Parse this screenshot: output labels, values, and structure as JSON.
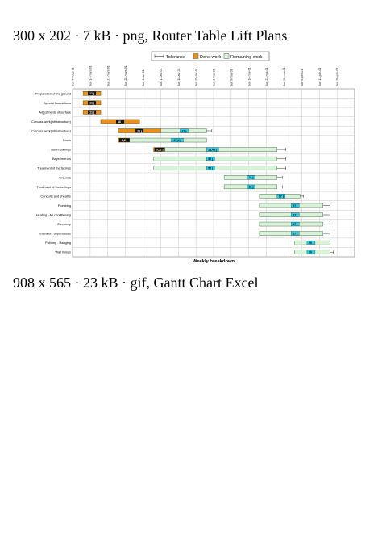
{
  "captions": {
    "top": "300 x 202 · 7 kB · png, Router Table Lift Plans",
    "bottom": "908 x 565 · 23 kB · gif, Gantt Chart Excel"
  },
  "chart_data": {
    "type": "gantt",
    "xlabel": "Weekly breakdown",
    "legend": {
      "placement": "top-right",
      "items": [
        {
          "key": "tolerance",
          "label": "Tolerance"
        },
        {
          "key": "done",
          "label": "Done work",
          "color": "#e8901a"
        },
        {
          "key": "remaining",
          "label": "Remaining work",
          "color": "#d9f2d9"
        }
      ]
    },
    "week_ticks": [
      "Sun 7-mars-01",
      "Sun 14-mars-01",
      "Sun 21-mars-01",
      "Sun 28-mars-01",
      "Sun 4-avr-01",
      "Sun 11-avr-01",
      "Sun 18-avr-01",
      "Sun 25-avr-01",
      "Sun 2-mai-01",
      "Sun 9-mai-01",
      "Sun 16-mai-01",
      "Sun 23-mai-01",
      "Sun 30-mai-01",
      "Sun 6-juin-01",
      "Sun 13-juin-01",
      "Sun 20-juin-01"
    ],
    "grid": true,
    "tasks": [
      {
        "name": "Preparation of the ground",
        "start": 0.6,
        "done_end": 1.6,
        "end": 1.6,
        "label": "11 j",
        "label_style": "done",
        "tol": null
      },
      {
        "name": "Special foundations",
        "start": 0.6,
        "done_end": 1.6,
        "end": 1.6,
        "label": "11 j",
        "label_style": "done",
        "tol": null
      },
      {
        "name": "Adjustments of surface",
        "start": 0.6,
        "done_end": 1.6,
        "end": 1.6,
        "label": "11 j",
        "label_style": "done",
        "tol": null
      },
      {
        "name": "Carcass work(infrastructure)",
        "start": 1.6,
        "done_end": 3.8,
        "end": 3.8,
        "label": "16 j",
        "label_style": "done",
        "tol": null
      },
      {
        "name": "Carcass work(infrastructure)",
        "start": 2.6,
        "done_end": 5.0,
        "end": 7.6,
        "label": "21 j",
        "label_style": "done",
        "label2": "21 j",
        "label2_pos": 6.1,
        "tol": [
          7.6,
          7.9
        ]
      },
      {
        "name": "Roofs",
        "start": 2.6,
        "done_end": 3.2,
        "end": 7.6,
        "label": "4,2 j",
        "label_style": "dark",
        "label2": "37,2 j",
        "label2_pos": 5.6,
        "tol": null
      },
      {
        "name": "Built-headings",
        "start": 4.6,
        "done_end": 5.2,
        "end": 11.6,
        "label": "0,51 j",
        "label_style": "dark",
        "label2": "58,49 j",
        "label2_pos": 7.6,
        "tol": [
          11.6,
          12.1
        ]
      },
      {
        "name": "Bays /mirrors",
        "start": 4.6,
        "done_end": 4.6,
        "end": 11.6,
        "label": "",
        "label_style": "done",
        "label2": "57 j",
        "label2_pos": 7.6,
        "tol": [
          11.6,
          12.1
        ]
      },
      {
        "name": "Treatment of the facings",
        "start": 4.6,
        "done_end": 4.6,
        "end": 11.6,
        "label": "",
        "label_style": "done",
        "label2": "57 j",
        "label2_pos": 7.6,
        "tol": [
          11.6,
          12.1
        ]
      },
      {
        "name": "Grounds",
        "start": 8.6,
        "done_end": 8.6,
        "end": 11.6,
        "label": "",
        "label_style": "done",
        "label2": "21 j",
        "label2_pos": 9.9,
        "tol": [
          11.6,
          11.9
        ]
      },
      {
        "name": "Treatment of the ceilings",
        "start": 8.6,
        "done_end": 8.6,
        "end": 11.6,
        "label": "",
        "label_style": "done",
        "label2": "21 j",
        "label2_pos": 9.9,
        "tol": [
          11.6,
          11.9
        ]
      },
      {
        "name": "Conduits and sheaths",
        "start": 10.6,
        "done_end": 10.6,
        "end": 12.9,
        "label": "",
        "label_style": "done",
        "label2": "17 j",
        "label2_pos": 11.6,
        "tol": [
          12.9,
          13.1
        ]
      },
      {
        "name": "Plumbing",
        "start": 10.6,
        "done_end": 10.6,
        "end": 14.2,
        "label": "",
        "label_style": "done",
        "label2": "27 j",
        "label2_pos": 12.4,
        "tol": [
          14.2,
          14.6
        ]
      },
      {
        "name": "Heating - Air conditioning",
        "start": 10.6,
        "done_end": 10.6,
        "end": 14.2,
        "label": "",
        "label_style": "done",
        "label2": "27 j",
        "label2_pos": 12.4,
        "tol": [
          14.2,
          14.6
        ]
      },
      {
        "name": "Electricity",
        "start": 10.6,
        "done_end": 10.6,
        "end": 14.2,
        "label": "",
        "label_style": "done",
        "label2": "27 j",
        "label2_pos": 12.4,
        "tol": [
          14.2,
          14.6
        ]
      },
      {
        "name": "Elevators apparatuses",
        "start": 10.6,
        "done_end": 10.6,
        "end": 14.2,
        "label": "",
        "label_style": "done",
        "label2": "27 j",
        "label2_pos": 12.4,
        "tol": [
          14.2,
          14.6
        ]
      },
      {
        "name": "Painting - Hanging",
        "start": 12.6,
        "done_end": 12.6,
        "end": 14.6,
        "label": "",
        "label_style": "done",
        "label2": "20 j",
        "label2_pos": 13.3,
        "tol": null
      },
      {
        "name": "Wall linings",
        "start": 12.6,
        "done_end": 12.6,
        "end": 14.6,
        "label": "",
        "label_style": "done",
        "label2": "20 j",
        "label2_pos": 13.3,
        "tol": [
          14.6,
          14.8
        ]
      }
    ]
  }
}
